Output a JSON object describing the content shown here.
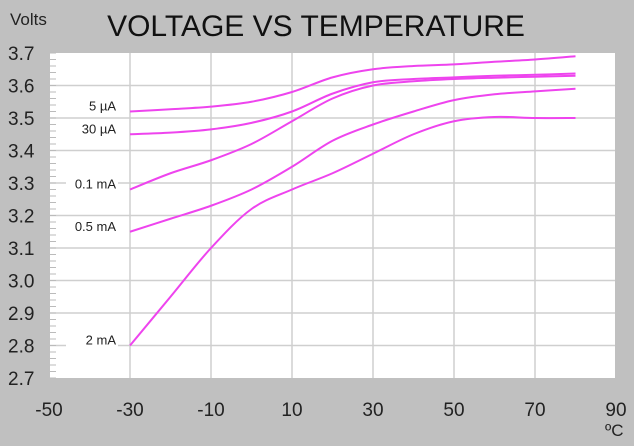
{
  "chart_data": {
    "type": "line",
    "title": "VOLTAGE VS TEMPERATURE",
    "ylabel": "Volts",
    "xlabel": "ºC",
    "xlim": [
      -50,
      90
    ],
    "ylim": [
      2.7,
      3.7
    ],
    "xticks": [
      -50,
      -30,
      -10,
      10,
      30,
      50,
      70,
      90
    ],
    "xtick_labels": [
      "-50",
      "-30",
      "-10",
      "10",
      "30",
      "50",
      "70",
      "90"
    ],
    "yticks": [
      2.7,
      2.8,
      2.9,
      3.0,
      3.1,
      3.2,
      3.3,
      3.4,
      3.5,
      3.6,
      3.7
    ],
    "ytick_labels": [
      "2.7",
      "2.8",
      "2.9",
      "3.0",
      "3.1",
      "3.2",
      "3.3",
      "3.4",
      "3.5",
      "3.6",
      "3.7"
    ],
    "grid": true,
    "line_color": "#ee44ee",
    "x": [
      -30,
      -20,
      -10,
      0,
      10,
      20,
      30,
      40,
      50,
      60,
      70,
      80
    ],
    "series": [
      {
        "name": "5 µA",
        "values": [
          3.52,
          3.527,
          3.535,
          3.55,
          3.58,
          3.625,
          3.65,
          3.66,
          3.665,
          3.673,
          3.68,
          3.69
        ]
      },
      {
        "name": "30 µA",
        "values": [
          3.45,
          3.455,
          3.465,
          3.485,
          3.52,
          3.575,
          3.61,
          3.62,
          3.625,
          3.63,
          3.633,
          3.637
        ]
      },
      {
        "name": "0.1 mA",
        "values": [
          3.28,
          3.33,
          3.37,
          3.42,
          3.49,
          3.56,
          3.6,
          3.613,
          3.62,
          3.624,
          3.627,
          3.63
        ]
      },
      {
        "name": "0.5 mA",
        "values": [
          3.15,
          3.19,
          3.23,
          3.28,
          3.35,
          3.43,
          3.48,
          3.52,
          3.555,
          3.573,
          3.582,
          3.59
        ]
      },
      {
        "name": "2 mA",
        "values": [
          2.8,
          2.95,
          3.1,
          3.22,
          3.28,
          3.33,
          3.39,
          3.45,
          3.49,
          3.503,
          3.5,
          3.5
        ]
      }
    ]
  }
}
